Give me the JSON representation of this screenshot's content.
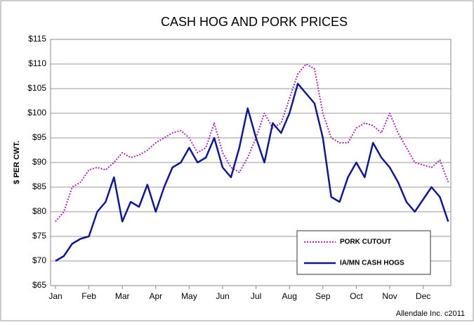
{
  "chart_data": {
    "type": "line",
    "title": "CASH HOG AND PORK PRICES",
    "y_label": "$ PER CWT.",
    "note": "Allendale Inc. c2011",
    "categories": [
      "Jan",
      null,
      null,
      null,
      "Feb",
      null,
      null,
      null,
      "Mar",
      null,
      null,
      null,
      "Apr",
      null,
      null,
      null,
      "May",
      null,
      null,
      null,
      "Jun",
      null,
      null,
      null,
      "Jul",
      null,
      null,
      null,
      "Aug",
      null,
      null,
      null,
      "Sep",
      null,
      null,
      null,
      "Oct",
      null,
      null,
      null,
      "Nov",
      null,
      null,
      null,
      "Dec",
      null,
      null,
      null
    ],
    "series": [
      {
        "name": "PORK CUTOUT",
        "color": "#a030b0",
        "dash": true,
        "values": [
          78,
          80,
          85,
          86,
          88.5,
          89,
          88.5,
          90,
          92,
          91,
          91.5,
          92.5,
          94,
          95,
          96,
          96.5,
          95,
          92,
          93,
          98,
          92,
          89,
          88,
          91,
          95,
          100,
          97,
          98,
          103,
          108,
          110,
          109,
          100,
          95,
          94,
          94,
          97,
          98,
          97.5,
          96,
          100,
          96,
          93,
          90,
          89.5,
          89,
          90.5,
          86
        ]
      },
      {
        "name": "IA/MN CASH HOGS",
        "color": "#10188a",
        "dash": false,
        "values": [
          70,
          71,
          73.5,
          74.5,
          75,
          80,
          82,
          87,
          78,
          82,
          81,
          85.5,
          80,
          85,
          89,
          90,
          93,
          90,
          91,
          95,
          89,
          87,
          93,
          101,
          95,
          90,
          98,
          96,
          100,
          106,
          104,
          102,
          95,
          83,
          82,
          87,
          90,
          87,
          94,
          91,
          89,
          86,
          82,
          80,
          82.5,
          85,
          83,
          78
        ]
      }
    ],
    "ylim": [
      65,
      115
    ],
    "yticks": [
      {
        "value": 65,
        "label": "$65"
      },
      {
        "value": 70,
        "label": "$70"
      },
      {
        "value": 75,
        "label": "$75"
      },
      {
        "value": 80,
        "label": "$80"
      },
      {
        "value": 85,
        "label": "$85"
      },
      {
        "value": 90,
        "label": "$90"
      },
      {
        "value": 95,
        "label": "$95"
      },
      {
        "value": 100,
        "label": "$100"
      },
      {
        "value": 105,
        "label": "$105"
      },
      {
        "value": 110,
        "label": "$110"
      },
      {
        "value": 115,
        "label": "$115"
      }
    ],
    "grid": true,
    "legend": "lower right"
  }
}
